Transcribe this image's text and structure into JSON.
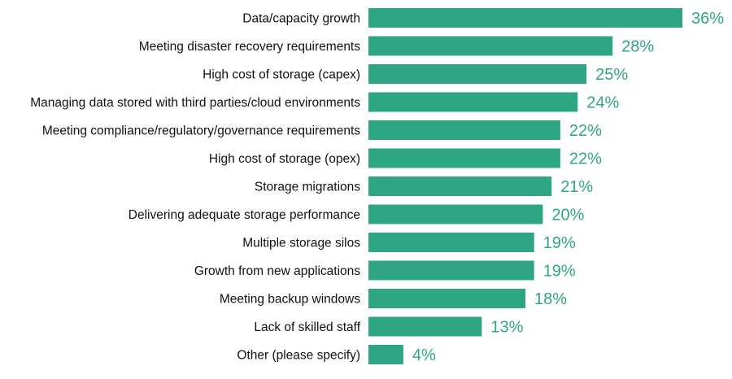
{
  "colors": {
    "bar": "#2ea684",
    "value_label": "#2ea684",
    "category_label": "#111111",
    "background": "#ffffff"
  },
  "chart_data": {
    "type": "bar",
    "orientation": "horizontal",
    "title": "",
    "xlabel": "",
    "ylabel": "",
    "grid": false,
    "legend": "none",
    "value_suffix": "%",
    "xlim": [
      0,
      36
    ],
    "categories": [
      "Data/capacity growth",
      "Meeting disaster recovery requirements",
      "High cost of storage (capex)",
      "Managing data stored with third parties/cloud environments",
      "Meeting compliance/regulatory/governance requirements",
      "High cost of storage (opex)",
      "Storage migrations",
      "Delivering adequate storage performance",
      "Multiple storage silos",
      "Growth from new applications",
      "Meeting backup windows",
      "Lack of skilled staff",
      "Other (please specify)"
    ],
    "values": [
      36,
      28,
      25,
      24,
      22,
      22,
      21,
      20,
      19,
      19,
      18,
      13,
      4
    ],
    "value_labels": [
      "36%",
      "28%",
      "25%",
      "24%",
      "22%",
      "22%",
      "21%",
      "20%",
      "19%",
      "19%",
      "18%",
      "13%",
      "4%"
    ]
  }
}
